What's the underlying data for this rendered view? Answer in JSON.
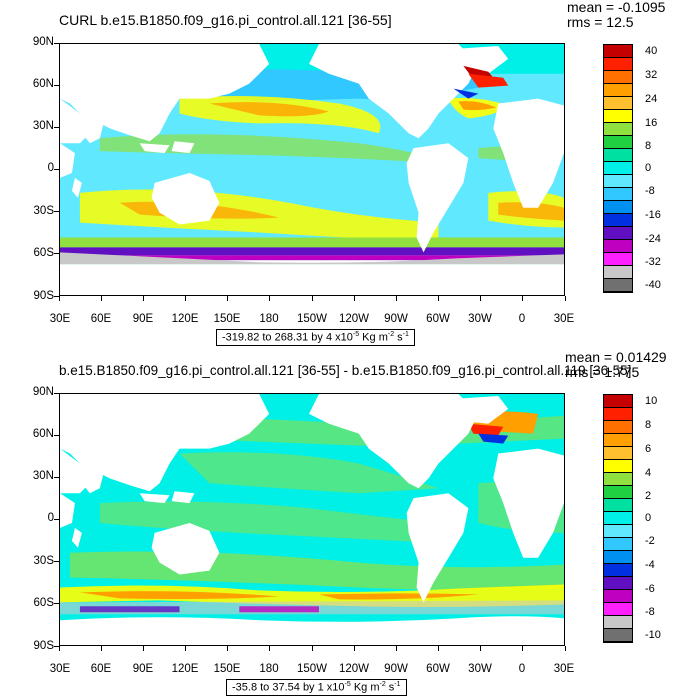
{
  "panels": [
    {
      "title": "CURL b.e15.B1850.f09_g16.pi_control.all.121 [36-55]",
      "mean": "mean = -0.1095",
      "rms": "rms = 12.5",
      "y_labels": [
        "90N",
        "60N",
        "30N",
        "0",
        "30S",
        "60S",
        "90S"
      ],
      "x_labels": [
        "30E",
        "60E",
        "90E",
        "120E",
        "150E",
        "180",
        "150W",
        "120W",
        "90W",
        "60W",
        "30W",
        "0",
        "30E"
      ],
      "range_prefix": "-319.82 to 268.31 by 4 x10",
      "range_exp": "-5",
      "range_units_a": " Kg m",
      "range_units_exp_a": "-2",
      "range_units_b": " s",
      "range_units_exp_b": "-1",
      "colorbar_labels": [
        "40",
        "32",
        "24",
        "16",
        "8",
        "0",
        "-8",
        "-16",
        "-24",
        "-32",
        "-40"
      ]
    },
    {
      "title": "b.e15.B1850.f09_g16.pi_control.all.121 [36-55] - b.e15.B1850.f09_g16.pi_control.all.119 [36-55]",
      "mean": "mean = 0.01429",
      "rms": "rms = 1.775",
      "y_labels": [
        "90N",
        "60N",
        "30N",
        "0",
        "30S",
        "60S",
        "90S"
      ],
      "x_labels": [
        "30E",
        "60E",
        "90E",
        "120E",
        "150E",
        "180",
        "150W",
        "120W",
        "90W",
        "60W",
        "30W",
        "0",
        "30E"
      ],
      "range_prefix": "-35.8 to 37.54 by 1 x10",
      "range_exp": "-5",
      "range_units_a": " Kg m",
      "range_units_exp_a": "-2",
      "range_units_b": " s",
      "range_units_exp_b": "-1",
      "colorbar_labels": [
        "10",
        "8",
        "6",
        "4",
        "2",
        "0",
        "-2",
        "-4",
        "-6",
        "-8",
        "-10"
      ]
    }
  ],
  "colorbar_colors": [
    "#c40000",
    "#ff2000",
    "#ff7000",
    "#ffa000",
    "#ffc030",
    "#ffff00",
    "#90e040",
    "#20d040",
    "#00e0a0",
    "#00f0e8",
    "#60e8ff",
    "#30c8ff",
    "#0090f0",
    "#0030e0",
    "#6010c0",
    "#c000c0",
    "#ff20ff",
    "#c8c8c8",
    "#707070"
  ]
}
